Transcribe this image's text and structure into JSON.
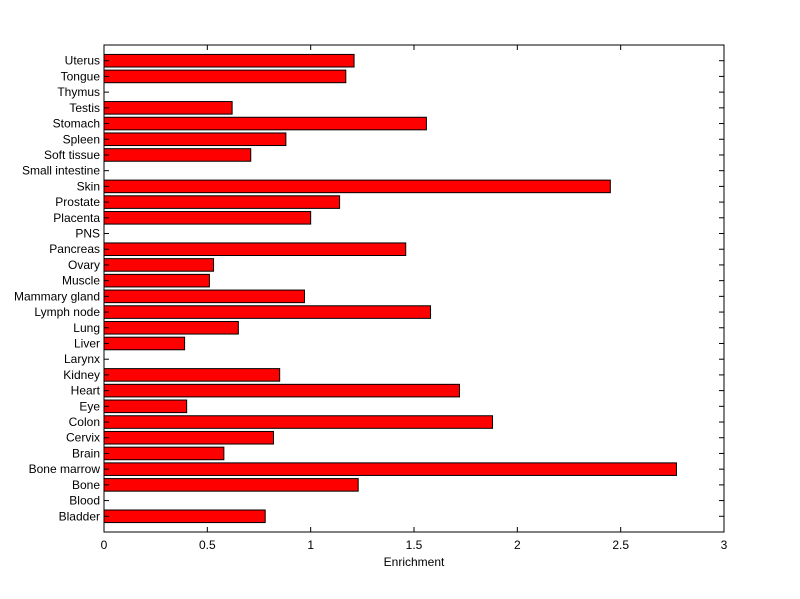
{
  "chart_data": {
    "type": "bar",
    "orientation": "horizontal",
    "title": "",
    "xlabel": "Enrichment",
    "ylabel": "",
    "xlim": [
      0,
      3
    ],
    "xticks": [
      0,
      0.5,
      1,
      1.5,
      2,
      2.5,
      3
    ],
    "xtick_labels": [
      "0",
      "0.5",
      "1",
      "1.5",
      "2",
      "2.5",
      "3"
    ],
    "grid": false,
    "bar_color": "#ff0000",
    "bar_edge_color": "#000000",
    "categories": [
      "Bladder",
      "Blood",
      "Bone",
      "Bone marrow",
      "Brain",
      "Cervix",
      "Colon",
      "Eye",
      "Heart",
      "Kidney",
      "Larynx",
      "Liver",
      "Lung",
      "Lymph node",
      "Mammary gland",
      "Muscle",
      "Ovary",
      "Pancreas",
      "PNS",
      "Placenta",
      "Prostate",
      "Skin",
      "Small intestine",
      "Soft tissue",
      "Spleen",
      "Stomach",
      "Testis",
      "Thymus",
      "Tongue",
      "Uterus"
    ],
    "values": [
      0.78,
      0,
      1.23,
      2.77,
      0.58,
      0.82,
      1.88,
      0.4,
      1.72,
      0.85,
      0,
      0.39,
      0.65,
      1.58,
      0.97,
      0.51,
      0.53,
      1.46,
      0,
      1.0,
      1.14,
      2.45,
      0,
      0.71,
      0.88,
      1.56,
      0.62,
      0,
      1.17,
      1.21
    ]
  }
}
